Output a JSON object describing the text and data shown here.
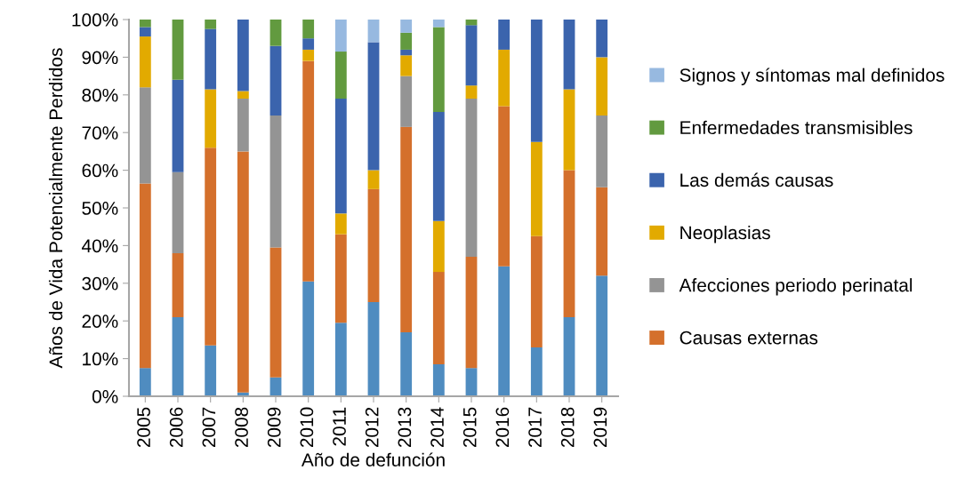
{
  "chart_data": {
    "type": "bar",
    "stacked": true,
    "xlabel": "Año de defunción",
    "ylabel": "Años de Vida Potencialmente Perdidos",
    "categories": [
      "2005",
      "2006",
      "2007",
      "2008",
      "2009",
      "2010",
      "2011",
      "2012",
      "2013",
      "2014",
      "2015",
      "2016",
      "2017",
      "2018",
      "2019"
    ],
    "series": [
      {
        "color": "#4f8cc0",
        "values": [
          7.5,
          21,
          13.5,
          1,
          5,
          30.5,
          19.5,
          25,
          17,
          8.5,
          7.5,
          34.5,
          13,
          21,
          32
        ]
      },
      {
        "name": "Causas externas",
        "color": "#d4702c",
        "values": [
          49,
          17,
          52.5,
          64,
          34.5,
          58.5,
          23.5,
          30,
          54.5,
          24.5,
          29.5,
          42.5,
          29.5,
          39,
          23.5
        ]
      },
      {
        "name": "Afecciones periodo perinatal",
        "color": "#949494",
        "values": [
          25.5,
          21.5,
          0,
          14,
          35,
          0,
          0,
          0,
          13.5,
          0,
          42,
          0,
          0,
          0,
          19
        ]
      },
      {
        "name": "Neoplasias",
        "color": "#e2aa00",
        "values": [
          13.5,
          0,
          15.5,
          2,
          0,
          3,
          5.5,
          5,
          5.5,
          13.5,
          3.5,
          15,
          25,
          21.5,
          15.5
        ]
      },
      {
        "name": "Las demás causas",
        "color": "#3b64ad",
        "values": [
          2.5,
          24.5,
          16,
          19,
          18.5,
          3,
          30.5,
          34,
          1.5,
          29,
          16,
          8,
          32.5,
          18.5,
          10
        ]
      },
      {
        "name": "Enfermedades transmisibles",
        "color": "#629a3f",
        "values": [
          2,
          16,
          2.5,
          0,
          7,
          5,
          12.5,
          0,
          4.5,
          22.5,
          1.5,
          0,
          0,
          0,
          0
        ]
      },
      {
        "name": "Signos y síntomas mal definidos",
        "color": "#97b9e0",
        "values": [
          0,
          0,
          0,
          0,
          0,
          0,
          8.5,
          6,
          3.5,
          2,
          0,
          0,
          0,
          0,
          0
        ]
      }
    ],
    "ylim": [
      0,
      100
    ],
    "yticks": [
      {
        "value": 0,
        "label": "0%"
      },
      {
        "value": 10,
        "label": "10%"
      },
      {
        "value": 20,
        "label": "20%"
      },
      {
        "value": 30,
        "label": "30%"
      },
      {
        "value": 40,
        "label": "40%"
      },
      {
        "value": 50,
        "label": "50%"
      },
      {
        "value": 60,
        "label": "60%"
      },
      {
        "value": 70,
        "label": "70%"
      },
      {
        "value": 80,
        "label": "80%"
      },
      {
        "value": 90,
        "label": "90%"
      },
      {
        "value": 100,
        "label": "100%"
      }
    ],
    "grid": false,
    "legend": "right"
  }
}
